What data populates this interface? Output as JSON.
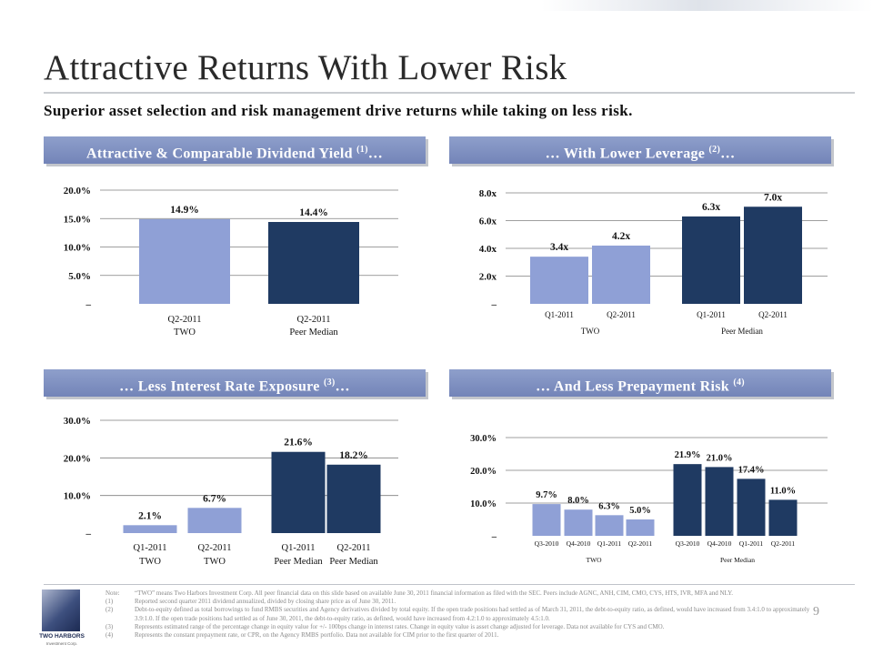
{
  "title": "Attractive Returns With Lower Risk",
  "subtitle": "Superior asset selection and risk management drive returns while taking on less risk.",
  "panels": [
    {
      "header": "Attractive & Comparable Dividend Yield",
      "sup": "(1)",
      "suffix": "…"
    },
    {
      "header": "… With Lower Leverage",
      "sup": "(2)",
      "suffix": "…"
    },
    {
      "header": "… Less Interest Rate Exposure",
      "sup": "(3)",
      "suffix": "…"
    },
    {
      "header": "… And Less Prepayment Risk",
      "sup": "(4)",
      "suffix": ""
    }
  ],
  "colors": {
    "two": "#8fa0d6",
    "peer": "#1f3a62",
    "header": "#7a8bbf",
    "grid": "#7f7f7f"
  },
  "chart_data": [
    {
      "type": "bar",
      "title": "Attractive & Comparable Dividend Yield (1)…",
      "categories": [
        "Q2-2011",
        "Q2-2011"
      ],
      "groups": [
        "TWO",
        "Peer Median"
      ],
      "group_of": [
        0,
        1
      ],
      "values": [
        14.9,
        14.4
      ],
      "value_labels": [
        "14.9%",
        "14.4%"
      ],
      "yticks": [
        "–",
        "5.0%",
        "10.0%",
        "15.0%",
        "20.0%"
      ],
      "ylim": [
        0,
        20
      ],
      "grid": true
    },
    {
      "type": "bar",
      "title": "… With Lower Leverage (2)…",
      "categories": [
        "Q1-2011",
        "Q2-2011",
        "Q1-2011",
        "Q2-2011"
      ],
      "groups": [
        "TWO",
        "Peer Median"
      ],
      "group_of": [
        0,
        0,
        1,
        1
      ],
      "values": [
        3.4,
        4.2,
        6.3,
        7.0
      ],
      "value_labels": [
        "3.4x",
        "4.2x",
        "6.3x",
        "7.0x"
      ],
      "yticks": [
        "–",
        "2.0x",
        "4.0x",
        "6.0x",
        "8.0x"
      ],
      "ylim": [
        0,
        8
      ],
      "grid": true
    },
    {
      "type": "bar",
      "title": "… Less Interest Rate Exposure (3)…",
      "categories": [
        "Q1-2011",
        "Q2-2011",
        "Q1-2011",
        "Q2-2011"
      ],
      "groups": [
        "TWO",
        "Peer Median"
      ],
      "group_of": [
        0,
        0,
        1,
        1
      ],
      "values": [
        2.1,
        6.7,
        21.6,
        18.2
      ],
      "value_labels": [
        "2.1%",
        "6.7%",
        "21.6%",
        "18.2%"
      ],
      "yticks": [
        "–",
        "10.0%",
        "20.0%",
        "30.0%"
      ],
      "ylim": [
        0,
        30
      ],
      "grid": true
    },
    {
      "type": "bar",
      "title": "… And Less Prepayment Risk (4)",
      "categories": [
        "Q3-2010",
        "Q4-2010",
        "Q1-2011",
        "Q2-2011",
        "Q3-2010",
        "Q4-2010",
        "Q1-2011",
        "Q2-2011"
      ],
      "groups": [
        "TWO",
        "Peer Median"
      ],
      "group_of": [
        0,
        0,
        0,
        0,
        1,
        1,
        1,
        1
      ],
      "values": [
        9.7,
        8.0,
        6.3,
        5.0,
        21.9,
        21.0,
        17.4,
        11.0
      ],
      "value_labels": [
        "9.7%",
        "8.0%",
        "6.3%",
        "5.0%",
        "21.9%",
        "21.0%",
        "17.4%",
        "11.0%"
      ],
      "yticks": [
        "–",
        "10.0%",
        "20.0%",
        "30.0%"
      ],
      "ylim": [
        0,
        30
      ],
      "grid": true
    }
  ],
  "footer": {
    "logo_name": "TWO HARBORS",
    "logo_sub": "Investment Corp.",
    "page_number": "9",
    "notes": [
      {
        "label": "Note:",
        "text": "“TWO” means Two Harbors Investment Corp. All peer financial data on this slide based on available June 30, 2011 financial information as filed with the SEC. Peers include AGNC, ANH, CIM, CMO, CYS, HTS, IVR, MFA and NLY."
      },
      {
        "label": "(1)",
        "text": "Reported second quarter 2011 dividend annualized, divided by closing share price as of June 30, 2011."
      },
      {
        "label": "(2)",
        "text": "Debt-to-equity defined as total borrowings to fund RMBS securities and Agency derivatives divided by total equity. If the open trade positions had settled as of March 31, 2011, the debt-to-equity ratio, as defined, would have increased from 3.4:1.0 to approximately 3.9:1.0. If the open trade positions had settled as of June 30, 2011, the debt-to-equity ratio, as defined, would have increased from 4.2:1.0 to approximately 4.5:1.0."
      },
      {
        "label": "(3)",
        "text": "Represents estimated range of the percentage change in equity value for +/- 100bps change in interest rates. Change in equity value is asset change adjusted for leverage. Data not available for CYS and CMO."
      },
      {
        "label": "(4)",
        "text": "Represents the constant prepayment rate, or CPR, on the Agency RMBS portfolio. Data not available for CIM prior to the first quarter of 2011."
      }
    ]
  }
}
